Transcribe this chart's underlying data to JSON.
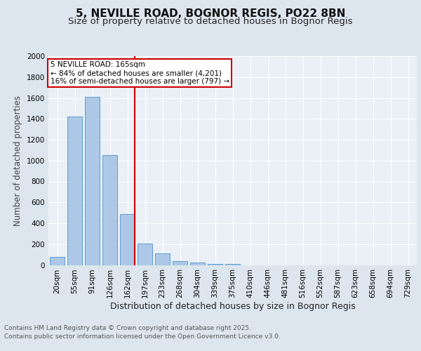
{
  "title_line1": "5, NEVILLE ROAD, BOGNOR REGIS, PO22 8BN",
  "title_line2": "Size of property relative to detached houses in Bognor Regis",
  "xlabel": "Distribution of detached houses by size in Bognor Regis",
  "ylabel": "Number of detached properties",
  "categories": [
    "20sqm",
    "55sqm",
    "91sqm",
    "126sqm",
    "162sqm",
    "197sqm",
    "233sqm",
    "268sqm",
    "304sqm",
    "339sqm",
    "375sqm",
    "410sqm",
    "446sqm",
    "481sqm",
    "516sqm",
    "552sqm",
    "587sqm",
    "623sqm",
    "658sqm",
    "694sqm",
    "729sqm"
  ],
  "values": [
    80,
    1420,
    1610,
    1050,
    490,
    205,
    110,
    40,
    25,
    12,
    12,
    0,
    0,
    0,
    0,
    0,
    0,
    0,
    0,
    0,
    0
  ],
  "bar_color": "#adc8e6",
  "bar_edge_color": "#5b9bd5",
  "vline_x": 4.43,
  "vline_color": "#cc0000",
  "annotation_text": "5 NEVILLE ROAD: 165sqm\n← 84% of detached houses are smaller (4,201)\n16% of semi-detached houses are larger (797) →",
  "annotation_box_color": "#ffffff",
  "annotation_box_edge": "#cc0000",
  "ylim": [
    0,
    2000
  ],
  "yticks": [
    0,
    200,
    400,
    600,
    800,
    1000,
    1200,
    1400,
    1600,
    1800,
    2000
  ],
  "bg_color": "#dde6ef",
  "plot_bg_color": "#eaf0f6",
  "footer_line1": "Contains HM Land Registry data © Crown copyright and database right 2025.",
  "footer_line2": "Contains public sector information licensed under the Open Government Licence v3.0.",
  "title_fontsize": 11,
  "subtitle_fontsize": 9.5,
  "tick_fontsize": 7.5,
  "ylabel_fontsize": 8.5,
  "xlabel_fontsize": 9,
  "annotation_fontsize": 7.5,
  "footer_fontsize": 6.5
}
